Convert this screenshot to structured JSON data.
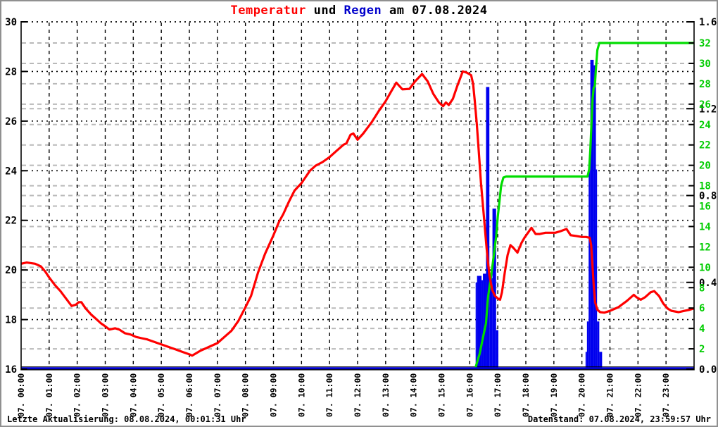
{
  "title": {
    "part_temperatur": "Temperatur",
    "part_und": " und ",
    "part_regen": "Regen",
    "part_date": " am 07.08.2024"
  },
  "footer": {
    "left": "Letzte Aktualisierung: 08.08.2024, 00:01:31 Uhr",
    "right": "Datenstand: 07.08.2024, 23:59:57 Uhr"
  },
  "colors": {
    "temperature_line": "#ff0000",
    "rain_bars": "#0000ee",
    "rain_baseline": "#0000cc",
    "rain_sum_line": "#00dd00",
    "green_axis_text": "#00cc00",
    "black_grid": "#000000",
    "gray_grid": "#b9b9b9"
  },
  "chart_data": {
    "type": "line",
    "title": "Temperatur und Regen am 07.08.2024",
    "x_axis": {
      "range_hours": [
        0,
        24
      ],
      "labels": [
        "07. 00:00",
        "07. 01:00",
        "07. 02:00",
        "07. 03:00",
        "07. 04:00",
        "07. 05:00",
        "07. 06:00",
        "07. 07:00",
        "07. 08:00",
        "07. 09:00",
        "07. 10:00",
        "07. 11:00",
        "07. 12:00",
        "07. 13:00",
        "07. 14:00",
        "07. 15:00",
        "07. 16:00",
        "07. 17:00",
        "07. 18:00",
        "07. 19:00",
        "07. 20:00",
        "07. 21:00",
        "07. 22:00",
        "07. 23:00"
      ]
    },
    "y_left_temperature": {
      "min": 16,
      "max": 30,
      "tick_labels": [
        30,
        28,
        26,
        24,
        22,
        20,
        18,
        16
      ]
    },
    "y_right_rain": {
      "min": 0.0,
      "max": 1.6,
      "tick_labels": [
        "1.6",
        "1.2",
        "0.8",
        "0.4",
        "0.0"
      ],
      "tick_values": [
        1.6,
        1.2,
        0.8,
        0.4,
        0.0
      ],
      "gray_gridlines": [
        0.4,
        0.8,
        1.2
      ]
    },
    "y_right_green": {
      "min": 0,
      "max": 32,
      "tick_labels": [
        32,
        30,
        28,
        26,
        24,
        22,
        20,
        18,
        16,
        14,
        12,
        10,
        8,
        6,
        4,
        2
      ]
    },
    "series": [
      {
        "name": "Temperatur",
        "kind": "line",
        "axis": "left",
        "color": "#ff0000",
        "points": [
          [
            0.0,
            20.25
          ],
          [
            0.2,
            20.3
          ],
          [
            0.5,
            20.25
          ],
          [
            0.7,
            20.15
          ],
          [
            0.85,
            19.95
          ],
          [
            1.0,
            19.7
          ],
          [
            1.2,
            19.4
          ],
          [
            1.4,
            19.15
          ],
          [
            1.6,
            18.85
          ],
          [
            1.8,
            18.55
          ],
          [
            1.95,
            18.6
          ],
          [
            2.05,
            18.7
          ],
          [
            2.15,
            18.7
          ],
          [
            2.3,
            18.45
          ],
          [
            2.5,
            18.2
          ],
          [
            2.7,
            18.0
          ],
          [
            2.85,
            17.85
          ],
          [
            3.0,
            17.73
          ],
          [
            3.15,
            17.6
          ],
          [
            3.35,
            17.65
          ],
          [
            3.5,
            17.6
          ],
          [
            3.7,
            17.45
          ],
          [
            3.9,
            17.4
          ],
          [
            4.1,
            17.3
          ],
          [
            4.3,
            17.25
          ],
          [
            4.5,
            17.2
          ],
          [
            4.75,
            17.1
          ],
          [
            5.0,
            17.0
          ],
          [
            5.25,
            16.9
          ],
          [
            5.5,
            16.8
          ],
          [
            5.75,
            16.7
          ],
          [
            6.0,
            16.6
          ],
          [
            6.1,
            16.55
          ],
          [
            6.25,
            16.65
          ],
          [
            6.4,
            16.75
          ],
          [
            6.6,
            16.85
          ],
          [
            6.8,
            16.95
          ],
          [
            7.0,
            17.05
          ],
          [
            7.25,
            17.3
          ],
          [
            7.5,
            17.55
          ],
          [
            7.75,
            17.95
          ],
          [
            8.0,
            18.5
          ],
          [
            8.2,
            18.95
          ],
          [
            8.45,
            19.9
          ],
          [
            8.7,
            20.65
          ],
          [
            9.0,
            21.4
          ],
          [
            9.2,
            21.95
          ],
          [
            9.35,
            22.25
          ],
          [
            9.55,
            22.75
          ],
          [
            9.75,
            23.2
          ],
          [
            10.0,
            23.5
          ],
          [
            10.3,
            24.0
          ],
          [
            10.5,
            24.2
          ],
          [
            10.75,
            24.35
          ],
          [
            11.0,
            24.55
          ],
          [
            11.25,
            24.8
          ],
          [
            11.5,
            25.05
          ],
          [
            11.6,
            25.1
          ],
          [
            11.75,
            25.45
          ],
          [
            11.85,
            25.5
          ],
          [
            12.0,
            25.25
          ],
          [
            12.2,
            25.5
          ],
          [
            12.5,
            25.95
          ],
          [
            12.75,
            26.4
          ],
          [
            13.0,
            26.8
          ],
          [
            13.2,
            27.2
          ],
          [
            13.38,
            27.55
          ],
          [
            13.6,
            27.28
          ],
          [
            13.85,
            27.3
          ],
          [
            14.05,
            27.6
          ],
          [
            14.3,
            27.9
          ],
          [
            14.5,
            27.6
          ],
          [
            14.7,
            27.1
          ],
          [
            14.9,
            26.75
          ],
          [
            15.05,
            26.6
          ],
          [
            15.15,
            26.75
          ],
          [
            15.25,
            26.65
          ],
          [
            15.4,
            26.9
          ],
          [
            15.55,
            27.4
          ],
          [
            15.75,
            28.0
          ],
          [
            15.9,
            27.95
          ],
          [
            16.05,
            27.85
          ],
          [
            16.12,
            27.5
          ],
          [
            16.18,
            26.8
          ],
          [
            16.25,
            25.9
          ],
          [
            16.32,
            24.8
          ],
          [
            16.4,
            23.5
          ],
          [
            16.5,
            22.2
          ],
          [
            16.6,
            20.9
          ],
          [
            16.7,
            19.8
          ],
          [
            16.8,
            19.2
          ],
          [
            16.9,
            18.95
          ],
          [
            17.0,
            18.85
          ],
          [
            17.08,
            18.8
          ],
          [
            17.15,
            19.1
          ],
          [
            17.25,
            19.9
          ],
          [
            17.35,
            20.6
          ],
          [
            17.45,
            21.0
          ],
          [
            17.55,
            20.9
          ],
          [
            17.7,
            20.7
          ],
          [
            17.85,
            21.1
          ],
          [
            17.95,
            21.3
          ],
          [
            18.2,
            21.7
          ],
          [
            18.35,
            21.45
          ],
          [
            18.5,
            21.45
          ],
          [
            18.7,
            21.5
          ],
          [
            18.9,
            21.5
          ],
          [
            19.05,
            21.5
          ],
          [
            19.2,
            21.55
          ],
          [
            19.45,
            21.65
          ],
          [
            19.6,
            21.4
          ],
          [
            19.8,
            21.37
          ],
          [
            20.0,
            21.33
          ],
          [
            20.15,
            21.33
          ],
          [
            20.28,
            21.3
          ],
          [
            20.33,
            21.0
          ],
          [
            20.37,
            20.3
          ],
          [
            20.42,
            19.4
          ],
          [
            20.47,
            18.7
          ],
          [
            20.55,
            18.4
          ],
          [
            20.65,
            18.3
          ],
          [
            20.8,
            18.28
          ],
          [
            21.0,
            18.35
          ],
          [
            21.3,
            18.5
          ],
          [
            21.6,
            18.75
          ],
          [
            21.85,
            19.0
          ],
          [
            21.95,
            18.9
          ],
          [
            22.1,
            18.8
          ],
          [
            22.25,
            18.9
          ],
          [
            22.45,
            19.1
          ],
          [
            22.58,
            19.15
          ],
          [
            22.75,
            18.95
          ],
          [
            22.9,
            18.65
          ],
          [
            23.05,
            18.45
          ],
          [
            23.2,
            18.35
          ],
          [
            23.45,
            18.3
          ],
          [
            23.65,
            18.35
          ],
          [
            23.85,
            18.4
          ],
          [
            24.0,
            18.45
          ]
        ]
      },
      {
        "name": "Regen",
        "kind": "bars",
        "axis": "right_rain",
        "color": "#0000ee",
        "bars": [
          [
            16.21,
            16.26,
            0.4
          ],
          [
            16.26,
            16.42,
            0.43
          ],
          [
            16.42,
            16.47,
            0.41
          ],
          [
            16.47,
            16.58,
            0.44
          ],
          [
            16.58,
            16.7,
            1.3
          ],
          [
            16.7,
            16.81,
            0.42
          ],
          [
            16.81,
            16.94,
            0.74
          ],
          [
            16.94,
            17.02,
            0.18
          ],
          [
            20.13,
            20.18,
            0.08
          ],
          [
            20.18,
            20.24,
            0.22
          ],
          [
            20.24,
            20.3,
            0.92
          ],
          [
            20.3,
            20.42,
            1.425
          ],
          [
            20.42,
            20.5,
            1.4
          ],
          [
            20.5,
            20.54,
            0.92
          ],
          [
            20.54,
            20.62,
            0.22
          ],
          [
            20.62,
            20.72,
            0.08
          ]
        ]
      },
      {
        "name": "Regensumme",
        "kind": "line",
        "axis": "right_green",
        "color": "#00dd00",
        "points": [
          [
            16.21,
            0.2
          ],
          [
            16.35,
            1.5
          ],
          [
            16.5,
            3.5
          ],
          [
            16.58,
            4.5
          ],
          [
            16.65,
            7.0
          ],
          [
            16.7,
            8.0
          ],
          [
            16.78,
            9.5
          ],
          [
            16.85,
            11.0
          ],
          [
            16.94,
            13.0
          ],
          [
            17.0,
            15.0
          ],
          [
            17.06,
            16.5
          ],
          [
            17.12,
            18.0
          ],
          [
            17.2,
            18.8
          ],
          [
            17.3,
            18.9
          ],
          [
            20.2,
            18.9
          ],
          [
            20.26,
            19.6
          ],
          [
            20.3,
            21.5
          ],
          [
            20.34,
            24.0
          ],
          [
            20.38,
            26.5
          ],
          [
            20.42,
            27.6
          ],
          [
            20.46,
            27.8
          ],
          [
            20.5,
            29.5
          ],
          [
            20.55,
            31.3
          ],
          [
            20.62,
            32.0
          ],
          [
            24.0,
            32.0
          ]
        ]
      }
    ]
  }
}
